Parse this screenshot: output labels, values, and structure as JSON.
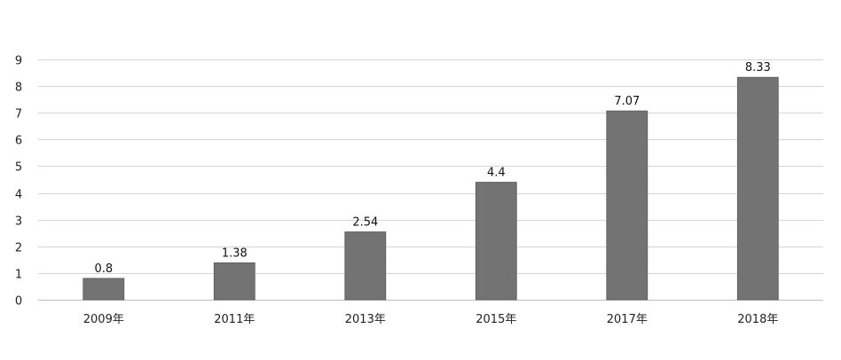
{
  "chart_data": {
    "type": "bar",
    "title": "",
    "xlabel": "",
    "ylabel": "",
    "categories": [
      "2009年",
      "2011年",
      "2013年",
      "2015年",
      "2017年",
      "2018年"
    ],
    "series": [
      {
        "values": [
          0.8,
          1.38,
          2.54,
          4.4,
          7.07,
          8.33
        ],
        "data_labels": [
          "0.8",
          "1.38",
          "2.54",
          "4.4",
          "7.07",
          "8.33"
        ],
        "color": "#737373"
      }
    ],
    "ylim": [
      0,
      9
    ],
    "yticks": [
      "0",
      "1",
      "2",
      "3",
      "4",
      "5",
      "6",
      "7",
      "8",
      "9"
    ],
    "grid": true,
    "legend": "none"
  }
}
